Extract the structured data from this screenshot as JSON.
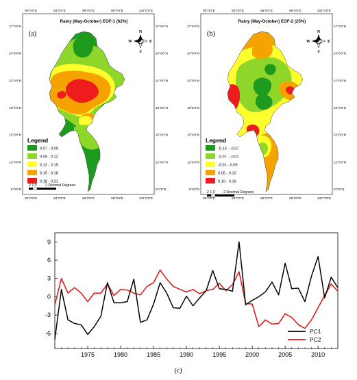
{
  "panels": [
    {
      "id": "a",
      "letter": "(a)",
      "title": "Rainy (May-October) EOF-1 (62%)",
      "legend_title": "Legend",
      "legend": [
        {
          "label": "0.07 - 0.09",
          "color": "#1e9a1e"
        },
        {
          "label": "0.09 - 0.12",
          "color": "#8ed62a"
        },
        {
          "label": "0.12 - 0.15",
          "color": "#ffff2e"
        },
        {
          "label": "0.15 - 0.18",
          "color": "#f5a300"
        },
        {
          "label": "0.18 - 0.21",
          "color": "#ee1c1c"
        }
      ]
    },
    {
      "id": "b",
      "letter": "(b)",
      "title": "Rainy (May-October) EOF-2 (25%)",
      "legend_title": "Legend",
      "legend": [
        {
          "label": "-0.13 - -0.07",
          "color": "#1e9a1e"
        },
        {
          "label": "-0.07 - -0.01",
          "color": "#8ed62a"
        },
        {
          "label": "-0.01 - 0.05",
          "color": "#ffff2e"
        },
        {
          "label": "0.05 - 0.10",
          "color": "#f5a300"
        },
        {
          "label": "0.10 - 0.16",
          "color": "#ee1c1c"
        }
      ]
    }
  ],
  "map_axes": {
    "lon_labels": [
      "90°0'0\"E",
      "93°0'0\"E",
      "96°0'0\"E",
      "99°0'0\"E",
      "102°0'0\"E"
    ],
    "lat_labels": [
      "27°0'0\"N",
      "24°0'0\"N",
      "21°0'0\"N",
      "18°0'0\"N",
      "15°0'0\"N",
      "12°0'0\"N",
      "9°0'0\"N"
    ]
  },
  "scale_bar": {
    "numbers": "2  1  0",
    "unit_label": "2 Decimal Degrees"
  },
  "compass": {
    "n": "N",
    "s": "S",
    "e": "E",
    "w": "W"
  },
  "chart_data": {
    "type": "line",
    "x": [
      1970,
      1971,
      1972,
      1973,
      1974,
      1975,
      1976,
      1977,
      1978,
      1979,
      1980,
      1981,
      1982,
      1983,
      1984,
      1985,
      1986,
      1987,
      1988,
      1989,
      1990,
      1991,
      1992,
      1993,
      1994,
      1995,
      1996,
      1997,
      1998,
      1999,
      2000,
      2001,
      2002,
      2003,
      2004,
      2005,
      2006,
      2007,
      2008,
      2009,
      2010,
      2011,
      2012,
      2013
    ],
    "series": [
      {
        "name": "PC1",
        "color": "#000000",
        "values": [
          -7.0,
          1.2,
          -3.8,
          -4.4,
          -4.6,
          -6.2,
          -4.9,
          -3.2,
          2.3,
          -1.0,
          -1.0,
          -0.8,
          2.9,
          -4.2,
          -3.8,
          -1.2,
          2.3,
          0.6,
          -1.8,
          -1.9,
          0.1,
          -1.5,
          -0.2,
          1.0,
          4.3,
          1.3,
          1.2,
          0.9,
          9.0,
          -1.3,
          -0.6,
          0.0,
          0.8,
          2.4,
          0.3,
          5.5,
          1.3,
          1.4,
          -0.8,
          3.4,
          6.6,
          -0.2,
          3.2,
          1.5
        ]
      },
      {
        "name": "PC2",
        "color": "#e01010",
        "values": [
          -1.3,
          3.0,
          0.6,
          1.5,
          0.6,
          -0.8,
          0.6,
          0.6,
          2.1,
          0.2,
          1.2,
          1.1,
          0.6,
          0.3,
          1.7,
          2.3,
          4.4,
          2.9,
          1.7,
          1.2,
          0.8,
          1.2,
          0.5,
          1.0,
          1.2,
          2.2,
          1.0,
          2.0,
          4.1,
          -1.1,
          -1.2,
          -4.9,
          -3.8,
          -4.5,
          -4.4,
          -2.8,
          -3.4,
          -4.6,
          -5.2,
          -3.8,
          -1.8,
          0.2,
          2.1,
          0.9
        ]
      }
    ],
    "x_ticks": [
      1975,
      1980,
      1985,
      1990,
      1995,
      2000,
      2005,
      2010
    ],
    "y_ticks": [
      9,
      6,
      3,
      0,
      -3,
      -6
    ],
    "xlim": [
      1970,
      2013
    ],
    "ylim": [
      -8.5,
      10.5
    ],
    "grid": false,
    "legend_position": "bottom-right"
  },
  "caption": "(c)"
}
